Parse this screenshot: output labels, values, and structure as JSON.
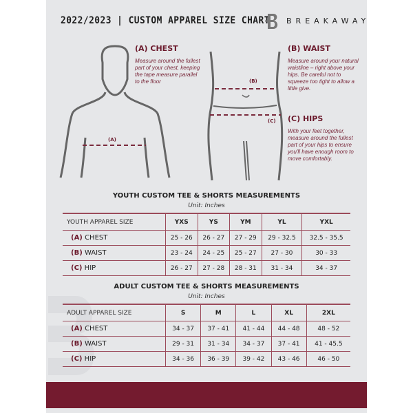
{
  "header": {
    "title": "2022/2023 | CUSTOM APPAREL SIZE CHART",
    "brand": "BREAKAWAY",
    "brand_mark": "B"
  },
  "chest": {
    "heading": "(A) CHEST",
    "text": "Measure around the fullest part of your chest, keeping the tape measure parallel to the floor",
    "marker": "(A)"
  },
  "waist": {
    "heading": "(B) WAIST",
    "text": "Measure around your natural waistline – right above your hips. Be careful not to squeeze too tight to allow a little give.",
    "marker": "(B)"
  },
  "hips": {
    "heading": "(C) HIPS",
    "text": "With your feet together, measure around the fullest part of your hips to ensure you'll have enough room to move comfortably.",
    "marker": "(C)"
  },
  "colors": {
    "accent": "#741b2f",
    "background": "#e6e7e9"
  },
  "youth": {
    "title": "YOUTH CUSTOM TEE & SHORTS MEASUREMENTS",
    "unit": "Unit: Inches",
    "header": [
      "YOUTH APPAREL SIZE",
      "YXS",
      "YS",
      "YM",
      "YL",
      "YXL"
    ],
    "rows": [
      {
        "code": "(A)",
        "name": "CHEST",
        "values": [
          "25 - 26",
          "26 - 27",
          "27 - 29",
          "29 - 32.5",
          "32.5 - 35.5"
        ]
      },
      {
        "code": "(B)",
        "name": "WAIST",
        "values": [
          "23 - 24",
          "24 - 25",
          "25 - 27",
          "27 - 30",
          "30 - 33"
        ]
      },
      {
        "code": "(C)",
        "name": "HIP",
        "values": [
          "26 - 27",
          "27 - 28",
          "28 - 31",
          "31 - 34",
          "34 - 37"
        ]
      }
    ]
  },
  "adult": {
    "title": "ADULT CUSTOM TEE & SHORTS MEASUREMENTS",
    "unit": "Unit: Inches",
    "header": [
      "ADULT APPAREL SIZE",
      "S",
      "M",
      "L",
      "XL",
      "2XL"
    ],
    "rows": [
      {
        "code": "(A)",
        "name": "CHEST",
        "values": [
          "34 - 37",
          "37 - 41",
          "41 - 44",
          "44 - 48",
          "48 - 52"
        ]
      },
      {
        "code": "(B)",
        "name": "WAIST",
        "values": [
          "29 - 31",
          "31 - 34",
          "34 - 37",
          "37 - 41",
          "41 - 45.5"
        ]
      },
      {
        "code": "(C)",
        "name": "HIP",
        "values": [
          "34 - 36",
          "36 - 39",
          "39 - 42",
          "43 - 46",
          "46 - 50"
        ]
      }
    ]
  }
}
